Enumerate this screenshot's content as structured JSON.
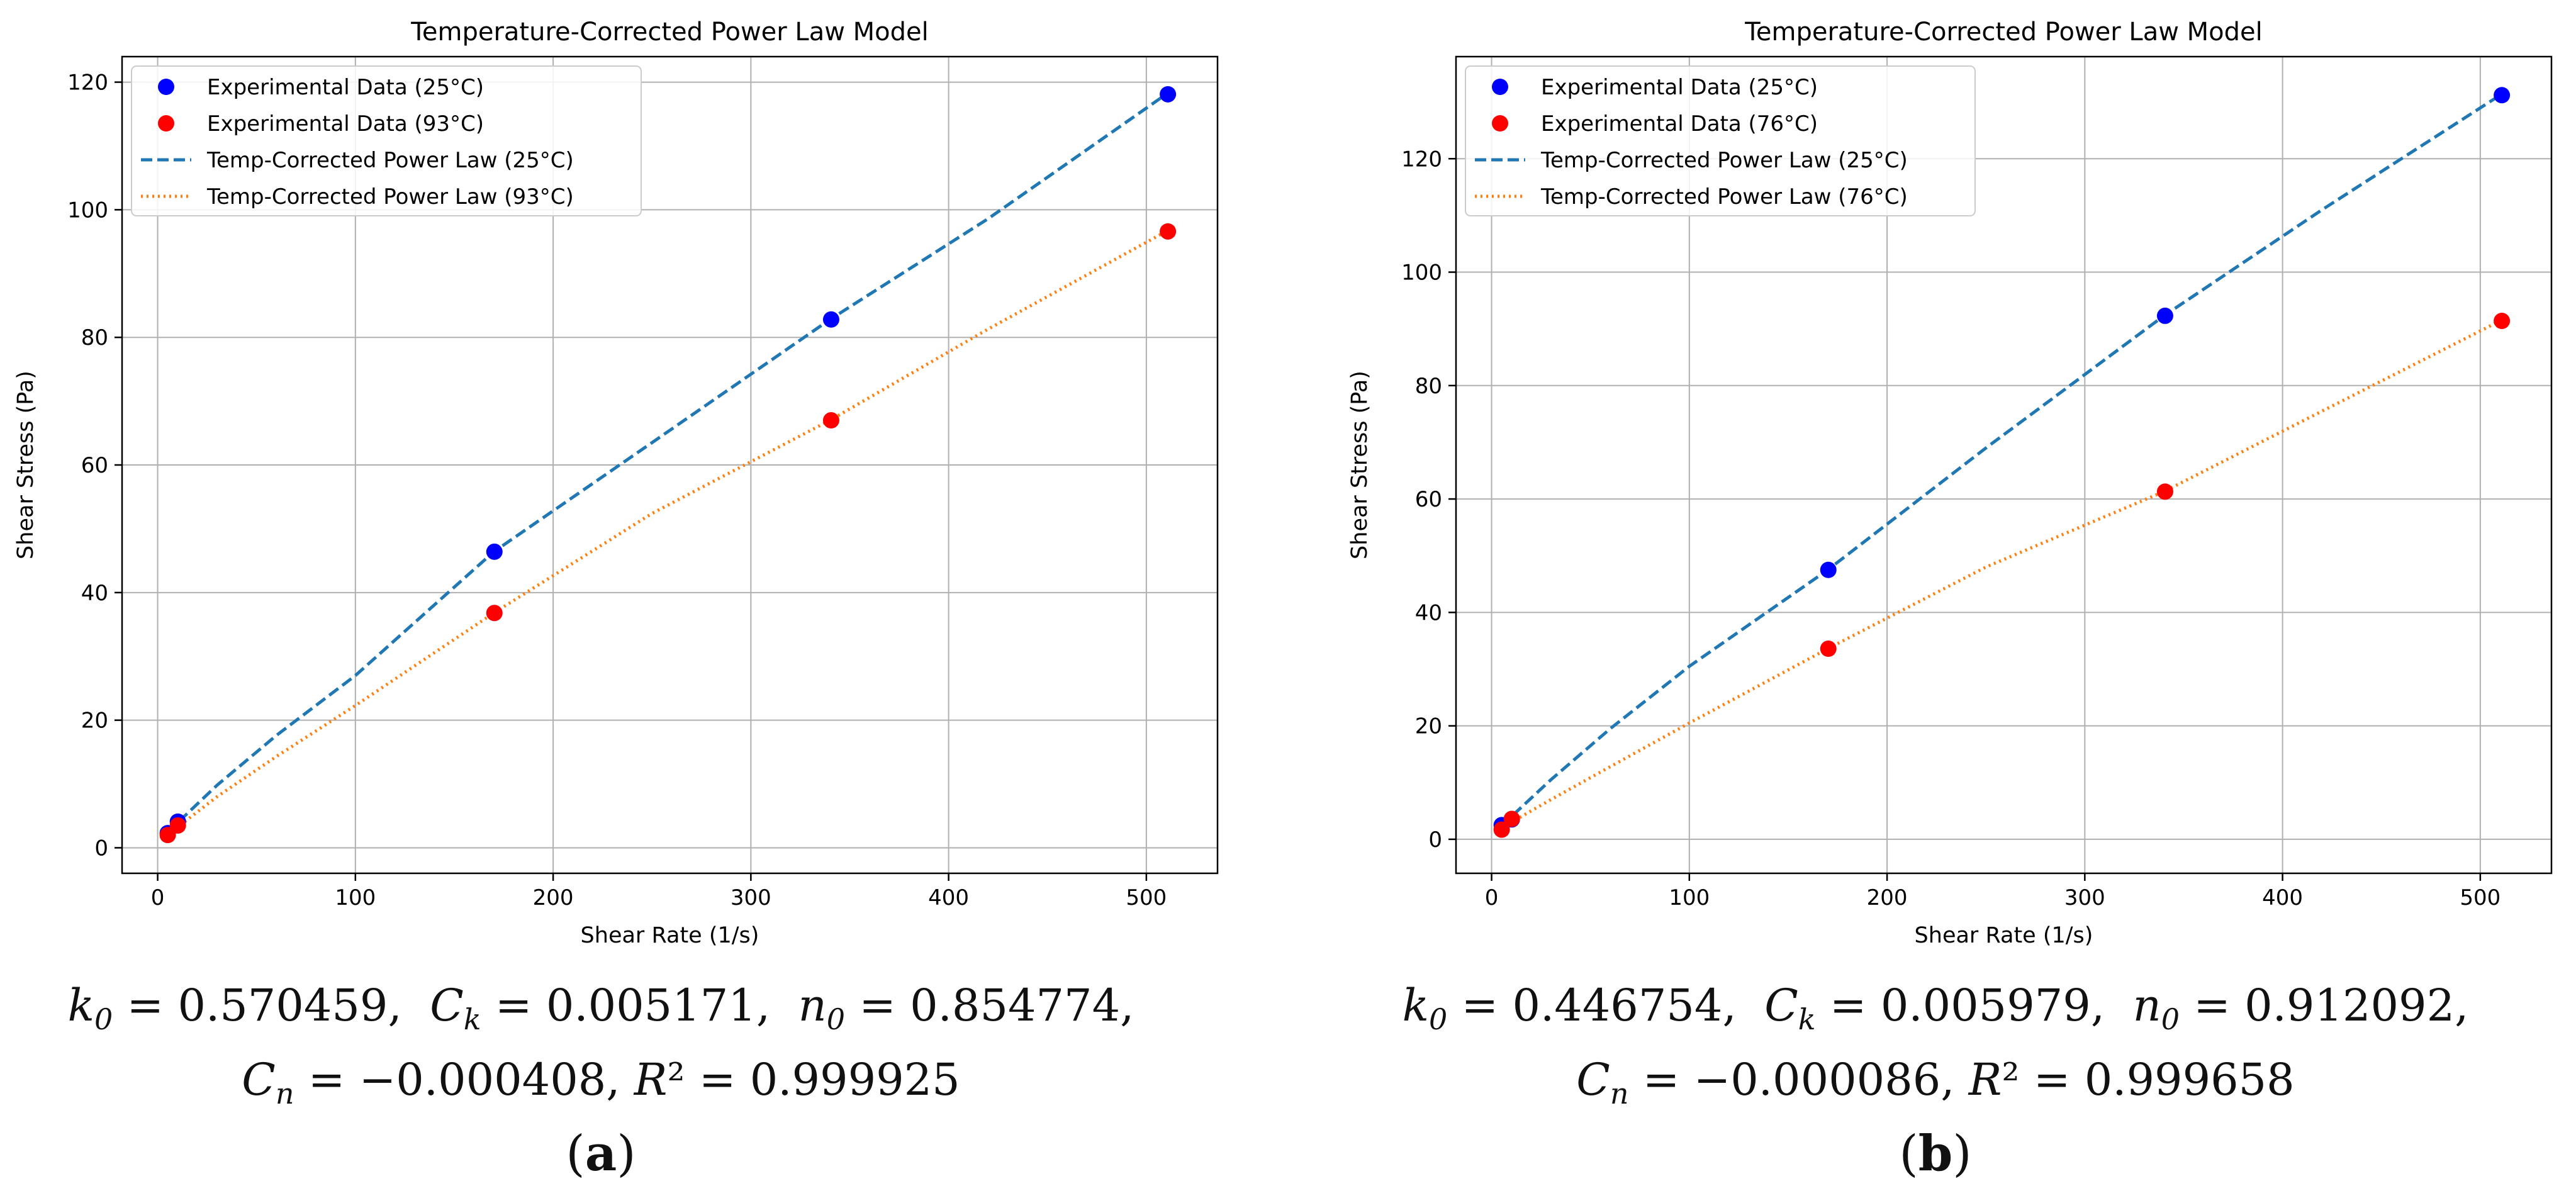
{
  "chart_data": [
    {
      "type": "scatter",
      "title": "Temperature-Corrected Power Law Model",
      "xlabel": "Shear Rate (1/s)",
      "ylabel": "Shear Stress (Pa)",
      "xlim": [
        -18,
        536
      ],
      "ylim": [
        -4,
        124
      ],
      "xticks": [
        0,
        100,
        200,
        300,
        400,
        500
      ],
      "yticks": [
        0,
        20,
        40,
        60,
        80,
        100,
        120
      ],
      "grid": true,
      "legend_position": "top-left",
      "series": [
        {
          "name": "Experimental Data (25°C)",
          "kind": "scatter",
          "color": "#0000ff",
          "x": [
            5.11,
            10.22,
            170.3,
            340.6,
            510.9
          ],
          "y": [
            2.3,
            4.1,
            46.4,
            82.8,
            118.1
          ]
        },
        {
          "name": "Experimental Data (93°C)",
          "kind": "scatter",
          "color": "#ff0000",
          "x": [
            5.11,
            10.22,
            170.3,
            340.6,
            510.9
          ],
          "y": [
            2.0,
            3.5,
            36.8,
            67.0,
            96.6
          ]
        },
        {
          "name": "Temp-Corrected Power Law (25°C)",
          "kind": "line",
          "style": "dashed",
          "color": "#1f77b4",
          "x": [
            5,
            10,
            30,
            60,
            100,
            170,
            250,
            340,
            420,
            510
          ],
          "y": [
            2.3,
            3.9,
            9.8,
            17.6,
            27.0,
            46.4,
            63.5,
            82.8,
            98.6,
            118.1
          ]
        },
        {
          "name": "Temp-Corrected Power Law (93°C)",
          "kind": "line",
          "style": "dotted",
          "color": "#ff7f0e",
          "x": [
            5,
            10,
            30,
            60,
            100,
            170,
            250,
            340,
            420,
            510
          ],
          "y": [
            1.8,
            3.2,
            8.0,
            14.3,
            22.3,
            36.8,
            52.4,
            67.0,
            81.3,
            96.6
          ]
        }
      ]
    },
    {
      "type": "scatter",
      "title": "Temperature-Corrected Power Law Model",
      "xlabel": "Shear Rate (1/s)",
      "ylabel": "Shear Stress (Pa)",
      "xlim": [
        -18,
        536
      ],
      "ylim": [
        -6,
        138
      ],
      "xticks": [
        0,
        100,
        200,
        300,
        400,
        500
      ],
      "yticks": [
        0,
        20,
        40,
        60,
        80,
        100,
        120
      ],
      "grid": true,
      "legend_position": "top-left",
      "series": [
        {
          "name": "Experimental Data (25°C)",
          "kind": "scatter",
          "color": "#0000ff",
          "x": [
            5.11,
            10.22,
            170.3,
            340.6,
            510.9
          ],
          "y": [
            2.5,
            3.5,
            47.5,
            92.3,
            131.2
          ]
        },
        {
          "name": "Experimental Data (76°C)",
          "kind": "scatter",
          "color": "#ff0000",
          "x": [
            5.11,
            10.22,
            170.3,
            340.6,
            510.9
          ],
          "y": [
            1.7,
            3.6,
            33.6,
            61.3,
            91.4
          ]
        },
        {
          "name": "Temp-Corrected Power Law (25°C)",
          "kind": "line",
          "style": "dashed",
          "color": "#1f77b4",
          "x": [
            5,
            10,
            30,
            60,
            100,
            170,
            250,
            340,
            420,
            510
          ],
          "y": [
            2.2,
            4.0,
            10.5,
            19.5,
            30.5,
            47.5,
            69.0,
            92.3,
            111.0,
            131.2
          ]
        },
        {
          "name": "Temp-Corrected Power Law (76°C)",
          "kind": "line",
          "style": "dotted",
          "color": "#ff7f0e",
          "x": [
            5,
            10,
            30,
            60,
            100,
            170,
            250,
            340,
            420,
            510
          ],
          "y": [
            1.5,
            3.0,
            7.0,
            12.8,
            20.5,
            33.6,
            48.0,
            61.3,
            75.5,
            91.4
          ]
        }
      ]
    }
  ],
  "captions": [
    {
      "k0": "0.570459",
      "Ck": "0.005171",
      "n0": "0.854774",
      "Cn": "−0.000408",
      "R2": "0.999925",
      "label": "a"
    },
    {
      "k0": "0.446754",
      "Ck": "0.005979",
      "n0": "0.912092",
      "Cn": "−0.000086",
      "R2": "0.999658",
      "label": "b"
    }
  ]
}
